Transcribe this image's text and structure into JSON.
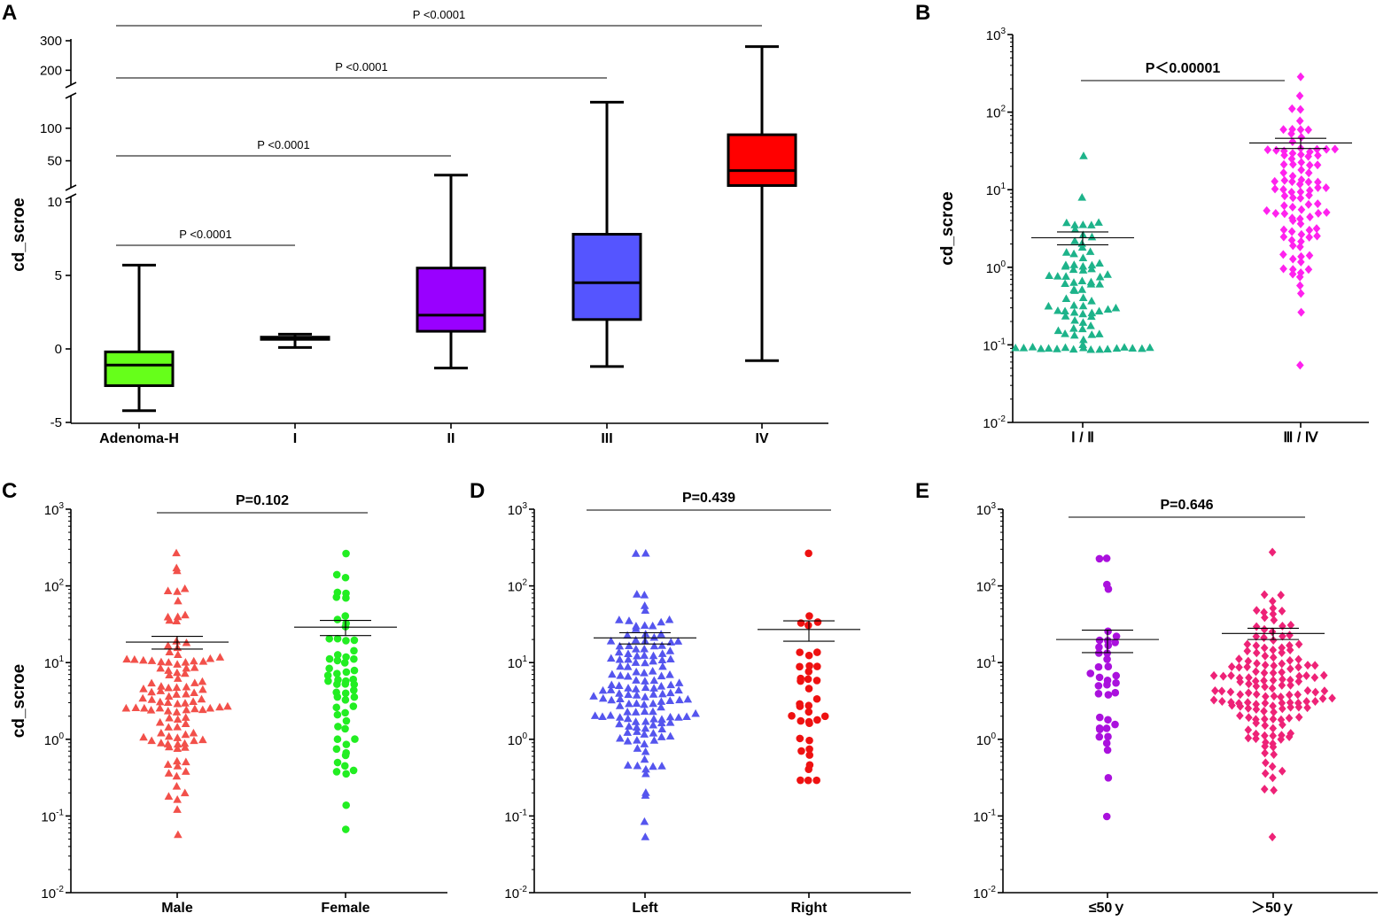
{
  "chart_data": [
    {
      "panel": "A",
      "type": "box",
      "ylabel": "cd_scroe",
      "categories": [
        "Adenoma-H",
        "I",
        "II",
        "III",
        "IV"
      ],
      "colors": [
        "#66ff1a",
        "#b3a9d6",
        "#9900ff",
        "#5555ff",
        "#ff0000"
      ],
      "y_ticks": [
        "-5",
        "0",
        "5",
        "10",
        "50",
        "100",
        "200",
        "300"
      ],
      "boxes": [
        {
          "min": -4.2,
          "q1": -2.5,
          "median": -1.1,
          "q3": -0.2,
          "max": 5.7
        },
        {
          "min": 0.1,
          "q1": 0.65,
          "median": 0.72,
          "q3": 0.8,
          "max": 1.0
        },
        {
          "min": -1.3,
          "q1": 1.2,
          "median": 2.3,
          "q3": 5.5,
          "max": 28
        },
        {
          "min": -1.2,
          "q1": 2.0,
          "median": 4.5,
          "q3": 7.8,
          "max": 140
        },
        {
          "min": -0.8,
          "q1": 12,
          "median": 35,
          "q3": 90,
          "max": 280
        }
      ],
      "comparisons": [
        {
          "from": "Adenoma-H",
          "to": "I",
          "label": "P <0.0001"
        },
        {
          "from": "Adenoma-H",
          "to": "II",
          "label": "P <0.0001"
        },
        {
          "from": "Adenoma-H",
          "to": "III",
          "label": "P <0.0001"
        },
        {
          "from": "Adenoma-H",
          "to": "IV",
          "label": "P <0.0001"
        }
      ]
    },
    {
      "panel": "B",
      "type": "scatter",
      "ylabel": "cd_scroe",
      "yscale": "log",
      "ylim": [
        0.01,
        1000
      ],
      "categories": [
        "Ⅰ / Ⅱ",
        "Ⅲ / Ⅳ"
      ],
      "markers": [
        "triangle",
        "diamond"
      ],
      "colors": [
        "#1db38a",
        "#ff22ee"
      ],
      "n": [
        85,
        95
      ],
      "mean": [
        2.4,
        40
      ],
      "sem": [
        0.45,
        6
      ],
      "extremes": [
        [
          0.09,
          27
        ],
        [
          0.055,
          280
        ]
      ],
      "comparison": "P＜0.00001"
    },
    {
      "panel": "C",
      "type": "scatter",
      "ylabel": "cd_scroe",
      "yscale": "log",
      "ylim": [
        0.01,
        1000
      ],
      "categories": [
        "Male",
        "Female"
      ],
      "markers": [
        "triangle",
        "circle"
      ],
      "colors": [
        "#f2504a",
        "#22ee22"
      ],
      "n": [
        110,
        60
      ],
      "mean": [
        18.5,
        29
      ],
      "sem": [
        3.5,
        6.5
      ],
      "extremes": [
        [
          0.055,
          270
        ],
        [
          0.065,
          270
        ]
      ],
      "comparison": "P=0.102"
    },
    {
      "panel": "D",
      "type": "scatter",
      "ylabel": "",
      "yscale": "log",
      "ylim": [
        0.01,
        1000
      ],
      "categories": [
        "Left",
        "Right"
      ],
      "markers": [
        "triangle",
        "circle"
      ],
      "colors": [
        "#5555ee",
        "#ee1111"
      ],
      "n": [
        140,
        38
      ],
      "mean": [
        21,
        27
      ],
      "sem": [
        3.5,
        8
      ],
      "extremes": [
        [
          0.055,
          270
        ],
        [
          0.3,
          270
        ]
      ],
      "comparison": "P=0.439"
    },
    {
      "panel": "E",
      "type": "scatter",
      "ylabel": "",
      "yscale": "log",
      "ylim": [
        0.01,
        1000
      ],
      "categories": [
        "≤50ｙ",
        "＞50ｙ"
      ],
      "markers": [
        "circle",
        "diamond"
      ],
      "colors": [
        "#aa11dd",
        "#ee2277"
      ],
      "n": [
        38,
        150
      ],
      "mean": [
        20,
        24
      ],
      "sem": [
        6.5,
        4
      ],
      "extremes": [
        [
          0.1,
          220
        ],
        [
          0.055,
          280
        ]
      ],
      "comparison": "P=0.646"
    }
  ]
}
